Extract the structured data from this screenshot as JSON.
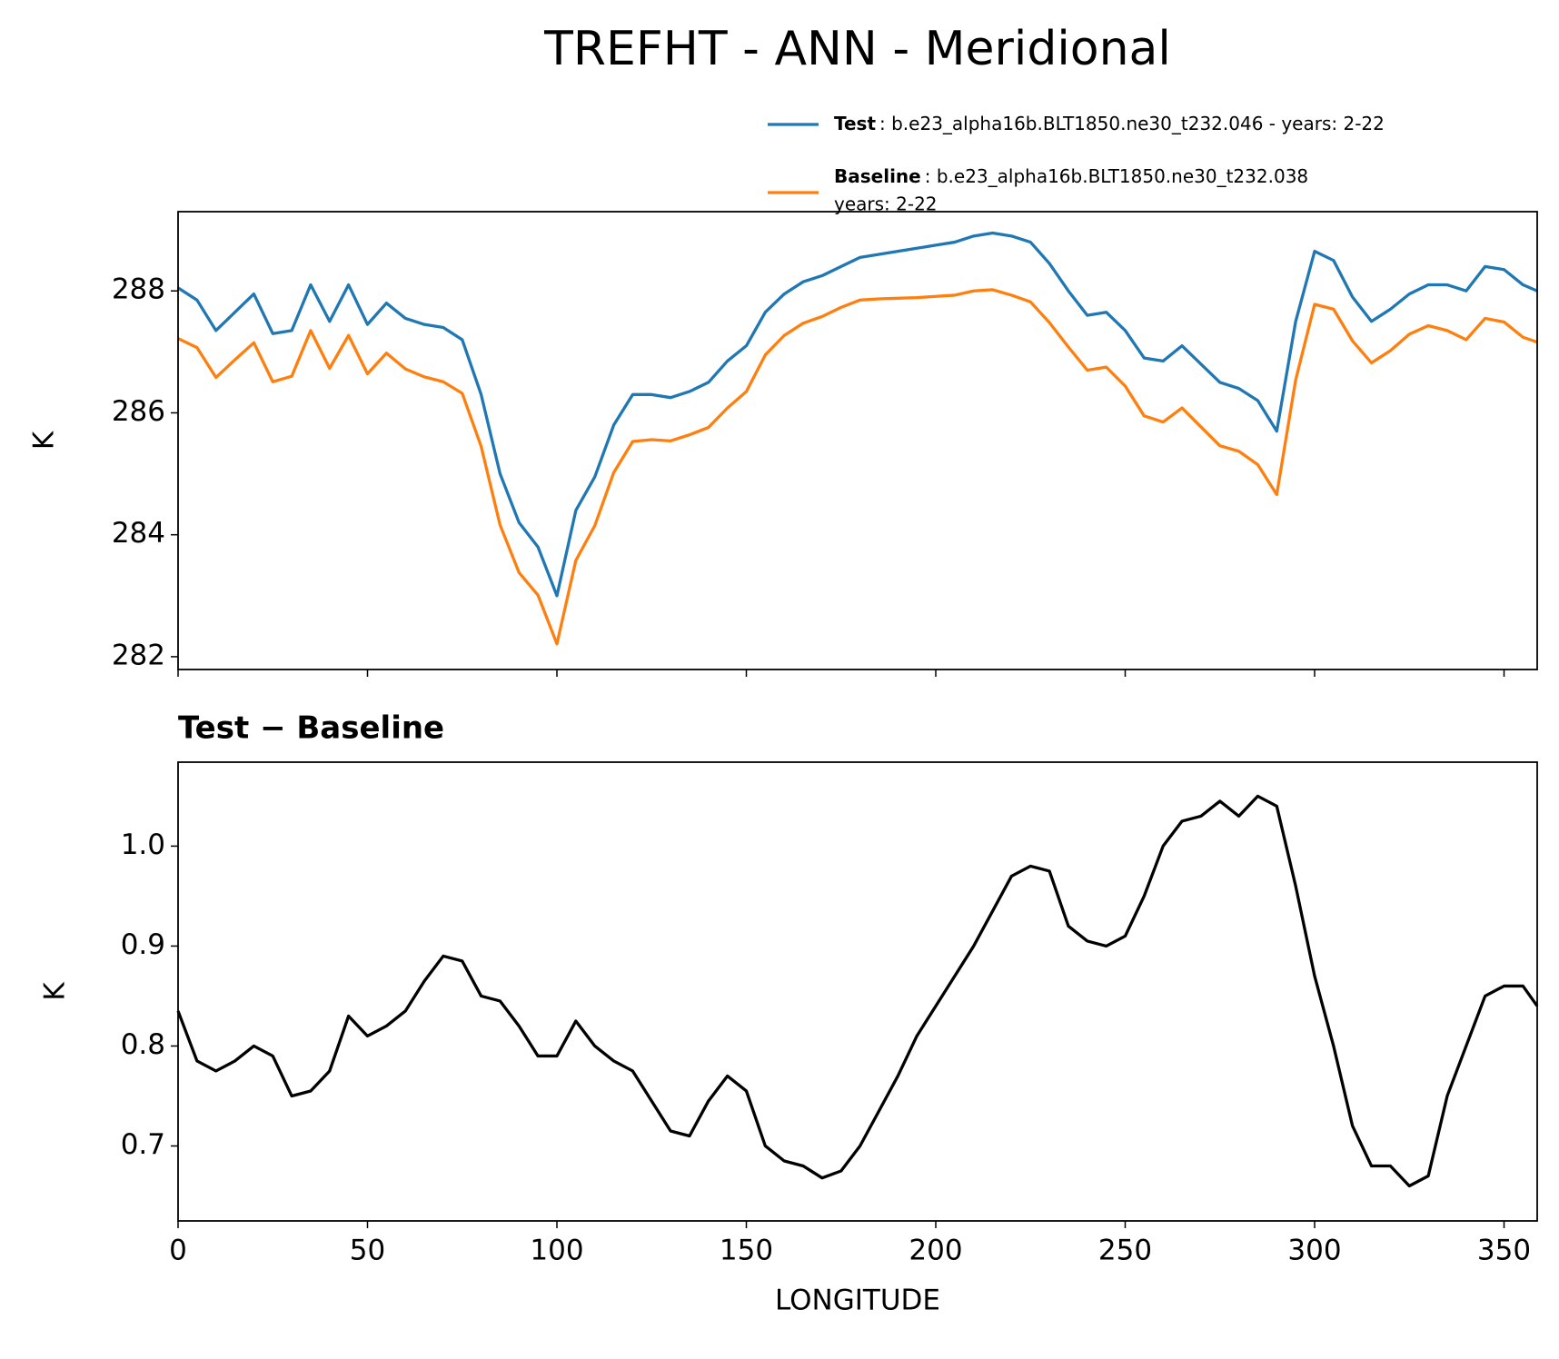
{
  "chart_data": [
    {
      "type": "line",
      "title": "TREFHT - ANN - Meridional",
      "ylabel": "K",
      "x": [
        0,
        5,
        10,
        15,
        20,
        25,
        30,
        35,
        40,
        45,
        50,
        55,
        60,
        65,
        70,
        75,
        80,
        85,
        90,
        95,
        100,
        105,
        110,
        115,
        120,
        125,
        130,
        135,
        140,
        145,
        150,
        155,
        160,
        165,
        170,
        175,
        180,
        185,
        190,
        195,
        200,
        205,
        210,
        215,
        220,
        225,
        230,
        235,
        240,
        245,
        250,
        255,
        260,
        265,
        270,
        275,
        280,
        285,
        290,
        295,
        300,
        305,
        310,
        315,
        320,
        325,
        330,
        335,
        340,
        345,
        350,
        355,
        358.75
      ],
      "series": [
        {
          "name": "Test",
          "legend_text": [
            ": b.e23_alpha16b.BLT1850.ne30_t232.046 - years: 2-22"
          ],
          "color": "#1f77b4",
          "values": [
            288.05,
            287.85,
            287.35,
            287.65,
            287.95,
            287.3,
            287.35,
            288.1,
            287.5,
            288.1,
            287.45,
            287.8,
            287.55,
            287.45,
            287.4,
            287.2,
            286.3,
            285.0,
            284.2,
            283.8,
            283.0,
            284.4,
            284.95,
            285.8,
            286.3,
            286.3,
            286.25,
            286.35,
            286.5,
            286.85,
            287.1,
            287.65,
            287.95,
            288.15,
            288.25,
            288.4,
            288.55,
            288.6,
            288.65,
            288.7,
            288.75,
            288.8,
            288.9,
            288.95,
            288.9,
            288.8,
            288.45,
            288.0,
            287.6,
            287.65,
            287.35,
            286.9,
            286.85,
            287.1,
            286.8,
            286.5,
            286.4,
            286.2,
            285.7,
            287.5,
            288.65,
            288.5,
            287.9,
            287.5,
            287.7,
            287.95,
            288.1,
            288.1,
            288.0,
            288.4,
            288.35,
            288.1,
            288.0
          ]
        },
        {
          "name": "Baseline",
          "legend_text": [
            ": b.e23_alpha16b.BLT1850.ne30_t232.038",
            "years: 2-22"
          ],
          "color": "#ff7f0e",
          "values": [
            287.22,
            287.07,
            286.58,
            286.87,
            287.15,
            286.51,
            286.6,
            287.35,
            286.73,
            287.27,
            286.64,
            286.98,
            286.72,
            286.59,
            286.51,
            286.32,
            285.45,
            284.16,
            283.38,
            283.01,
            282.21,
            283.58,
            284.15,
            285.02,
            285.53,
            285.56,
            285.54,
            285.64,
            285.76,
            286.08,
            286.35,
            286.95,
            287.27,
            287.47,
            287.58,
            287.73,
            287.85,
            287.87,
            287.88,
            287.89,
            287.91,
            287.93,
            288.0,
            288.02,
            287.93,
            287.82,
            287.48,
            287.08,
            286.7,
            286.75,
            286.44,
            285.95,
            285.85,
            286.08,
            285.77,
            285.46,
            285.37,
            285.15,
            284.66,
            286.54,
            287.78,
            287.7,
            287.18,
            286.82,
            287.02,
            287.29,
            287.43,
            287.35,
            287.2,
            287.55,
            287.49,
            287.24,
            287.16
          ]
        }
      ],
      "xlim": [
        0,
        358.75
      ],
      "xticks": [
        0,
        50,
        100,
        150,
        200,
        250,
        300,
        350
      ],
      "ylim": [
        281.79,
        289.3
      ],
      "yticks": [
        282,
        284,
        286,
        288
      ]
    },
    {
      "type": "line",
      "title": "Test − Baseline",
      "ylabel": "K",
      "xlabel": "LONGITUDE",
      "x": [
        0,
        5,
        10,
        15,
        20,
        25,
        30,
        35,
        40,
        45,
        50,
        55,
        60,
        65,
        70,
        75,
        80,
        85,
        90,
        95,
        100,
        105,
        110,
        115,
        120,
        125,
        130,
        135,
        140,
        145,
        150,
        155,
        160,
        165,
        170,
        175,
        180,
        185,
        190,
        195,
        200,
        205,
        210,
        215,
        220,
        225,
        230,
        235,
        240,
        245,
        250,
        255,
        260,
        265,
        270,
        275,
        280,
        285,
        290,
        295,
        300,
        305,
        310,
        315,
        320,
        325,
        330,
        335,
        340,
        345,
        350,
        355,
        358.75
      ],
      "series": [
        {
          "color": "#000000",
          "values": [
            0.835,
            0.785,
            0.775,
            0.785,
            0.8,
            0.79,
            0.75,
            0.755,
            0.775,
            0.83,
            0.81,
            0.82,
            0.835,
            0.865,
            0.89,
            0.885,
            0.85,
            0.845,
            0.82,
            0.79,
            0.79,
            0.825,
            0.8,
            0.785,
            0.775,
            0.745,
            0.715,
            0.71,
            0.745,
            0.77,
            0.755,
            0.7,
            0.685,
            0.68,
            0.668,
            0.675,
            0.7,
            0.735,
            0.77,
            0.81,
            0.84,
            0.87,
            0.9,
            0.935,
            0.97,
            0.98,
            0.975,
            0.92,
            0.905,
            0.9,
            0.91,
            0.95,
            1.0,
            1.025,
            1.03,
            1.045,
            1.03,
            1.05,
            1.04,
            0.96,
            0.87,
            0.8,
            0.72,
            0.68,
            0.68,
            0.66,
            0.67,
            0.75,
            0.8,
            0.85,
            0.86,
            0.86,
            0.84
          ]
        }
      ],
      "xlim": [
        0,
        358.75
      ],
      "xticks": [
        0,
        50,
        100,
        150,
        200,
        250,
        300,
        350
      ],
      "ylim": [
        0.625,
        1.084
      ],
      "yticks": [
        0.7,
        0.8,
        0.9,
        {
          "value": 1,
          "label": "1.0"
        }
      ]
    }
  ]
}
